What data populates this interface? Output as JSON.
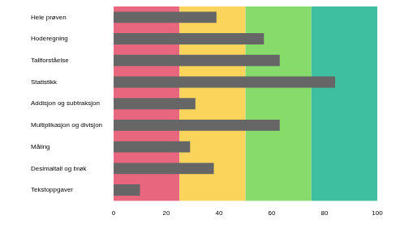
{
  "chart_data": {
    "type": "bar",
    "orientation": "horizontal",
    "categories": [
      "Hele prøven",
      "Hoderegning",
      "Tallforståelse",
      "Statistikk",
      "Addisjon og subtraksjon",
      "Multiplikasjon og divisjon",
      "Måling",
      "Desimaltall og brøk",
      "Tekstoppgaver"
    ],
    "values": [
      39,
      57,
      63,
      84,
      31,
      63,
      29,
      38,
      10
    ],
    "color": "#666666",
    "xlim": [
      0,
      100
    ],
    "xticks": [
      0,
      20,
      40,
      60,
      80,
      100
    ],
    "grid": false,
    "bands": [
      {
        "from": 0,
        "to": 25,
        "color": "#e9677e"
      },
      {
        "from": 25,
        "to": 50,
        "color": "#fbd45c"
      },
      {
        "from": 50,
        "to": 75,
        "color": "#86db6b"
      },
      {
        "from": 75,
        "to": 100,
        "color": "#3ebf9f"
      }
    ]
  }
}
